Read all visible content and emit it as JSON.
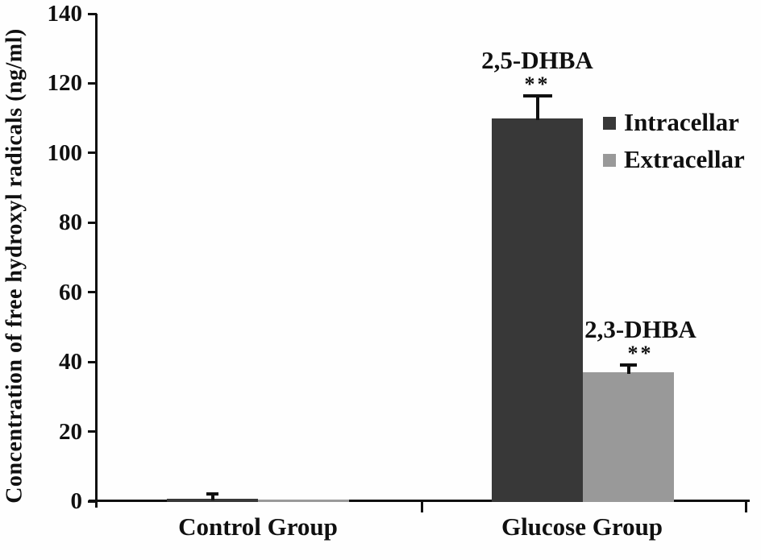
{
  "chart_data": {
    "type": "bar",
    "title": "",
    "ylabel": "Concentration of free hydroxyl radicals (ng/ml)",
    "xlabel": "",
    "categories": [
      "Control Group",
      "Glucose Group"
    ],
    "series": [
      {
        "name": "Intracellar",
        "color": "#383838",
        "values": [
          0.8,
          110
        ],
        "errors": [
          1.3,
          6.5
        ]
      },
      {
        "name": "Extracellar",
        "color": "#999999",
        "values": [
          0.5,
          37
        ],
        "errors": [
          0,
          2
        ]
      }
    ],
    "ylim": [
      0,
      140
    ],
    "yticks": [
      0,
      20,
      40,
      60,
      80,
      100,
      120,
      140
    ],
    "grid": false,
    "legend": {
      "position": "upper right",
      "entries": [
        "Intracellar",
        "Extracellar"
      ]
    },
    "annotations": [
      {
        "text": "2,5-DHBA",
        "significance": "**",
        "category": "Glucose Group",
        "series": "Intracellar"
      },
      {
        "text": "2,3-DHBA",
        "significance": "**",
        "category": "Glucose Group",
        "series": "Extracellar"
      }
    ]
  }
}
